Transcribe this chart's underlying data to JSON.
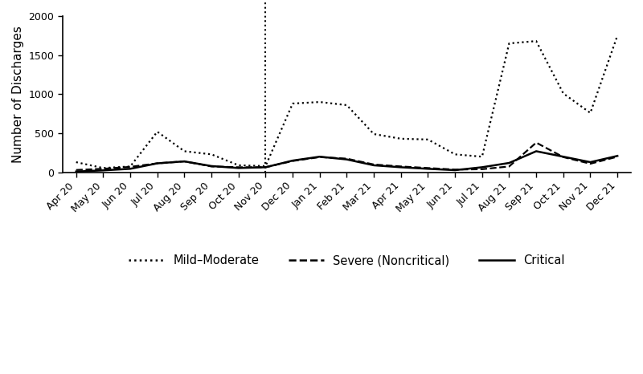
{
  "x_labels": [
    "Apr 20",
    "May 20",
    "Jun 20",
    "Jul 20",
    "Aug 20",
    "Sep 20",
    "Oct 20",
    "Nov 20",
    "Dec 20",
    "Jan 21",
    "Feb 21",
    "Mar 21",
    "Apr 21",
    "May 21",
    "Jun 21",
    "Jul 21",
    "Aug 21",
    "Sep 21",
    "Oct 21",
    "Nov 21",
    "Dec 21"
  ],
  "mild_moderate": [
    130,
    55,
    75,
    520,
    270,
    230,
    90,
    80,
    880,
    900,
    860,
    490,
    430,
    420,
    230,
    200,
    1650,
    1680,
    1010,
    760,
    1750
  ],
  "severe_noncritical": [
    30,
    45,
    70,
    115,
    140,
    75,
    65,
    65,
    145,
    195,
    175,
    100,
    75,
    55,
    35,
    40,
    75,
    380,
    195,
    110,
    200
  ],
  "critical": [
    10,
    25,
    45,
    115,
    140,
    80,
    55,
    65,
    150,
    200,
    165,
    90,
    65,
    45,
    28,
    65,
    120,
    270,
    200,
    130,
    210
  ],
  "ylabel": "Number of Discharges",
  "ylim": [
    0,
    2000
  ],
  "yticks": [
    0,
    500,
    1000,
    1500,
    2000
  ],
  "vline_x": 7,
  "legend_labels": [
    "Mild–Moderate",
    "Severe (Noncritical)",
    "Critical"
  ],
  "line_color": "#000000",
  "background_color": "#ffffff"
}
